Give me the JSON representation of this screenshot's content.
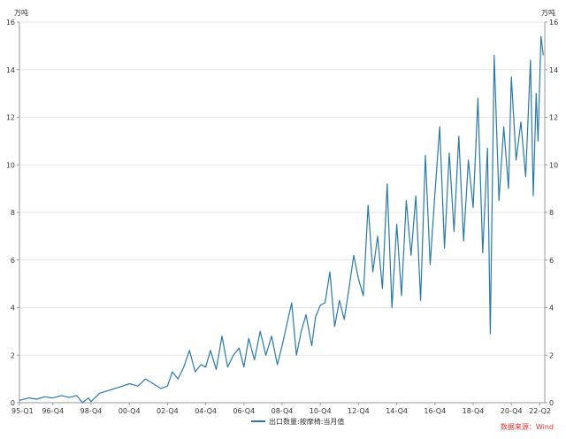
{
  "chart_data": {
    "type": "line",
    "y_unit_left": "万吨",
    "y_unit_right": "万吨",
    "ylim": [
      0,
      16
    ],
    "yticks": [
      0,
      2,
      4,
      6,
      8,
      10,
      12,
      14,
      16
    ],
    "xlim": [
      1995.0,
      2022.5
    ],
    "xticks": [
      {
        "label": "95-Q1",
        "x": 1995.0
      },
      {
        "label": "96-Q4",
        "x": 1996.75
      },
      {
        "label": "98-Q4",
        "x": 1998.75
      },
      {
        "label": "00-Q4",
        "x": 2000.75
      },
      {
        "label": "02-Q4",
        "x": 2002.75
      },
      {
        "label": "04-Q4",
        "x": 2004.75
      },
      {
        "label": "06-Q4",
        "x": 2006.75
      },
      {
        "label": "08-Q4",
        "x": 2008.75
      },
      {
        "label": "10-Q4",
        "x": 2010.75
      },
      {
        "label": "12-Q4",
        "x": 2012.75
      },
      {
        "label": "14-Q4",
        "x": 2014.75
      },
      {
        "label": "16-Q4",
        "x": 2016.75
      },
      {
        "label": "18-Q4",
        "x": 2018.75
      },
      {
        "label": "20-Q4",
        "x": 2020.75
      },
      {
        "label": "22-Q2",
        "x": 2022.25
      }
    ],
    "grid": "horizontal",
    "legend_position": "bottom",
    "source_note": "数据来源：Wind",
    "series": [
      {
        "name": "出口数量:按摩椅:当月值",
        "color": "#2a79a8",
        "points": [
          [
            1995.0,
            0.1
          ],
          [
            1995.5,
            0.2
          ],
          [
            1995.9,
            0.15
          ],
          [
            1996.3,
            0.25
          ],
          [
            1996.75,
            0.2
          ],
          [
            1997.2,
            0.3
          ],
          [
            1997.6,
            0.22
          ],
          [
            1998.0,
            0.3
          ],
          [
            1998.3,
            0.0
          ],
          [
            1998.6,
            0.2
          ],
          [
            1998.75,
            0.05
          ],
          [
            1999.2,
            0.4
          ],
          [
            1999.6,
            0.5
          ],
          [
            2000.0,
            0.6
          ],
          [
            2000.4,
            0.7
          ],
          [
            2000.75,
            0.8
          ],
          [
            2001.2,
            0.7
          ],
          [
            2001.6,
            1.0
          ],
          [
            2002.0,
            0.8
          ],
          [
            2002.4,
            0.6
          ],
          [
            2002.75,
            0.7
          ],
          [
            2003.0,
            1.3
          ],
          [
            2003.3,
            1.0
          ],
          [
            2003.6,
            1.5
          ],
          [
            2003.9,
            2.2
          ],
          [
            2004.2,
            1.3
          ],
          [
            2004.5,
            1.6
          ],
          [
            2004.75,
            1.5
          ],
          [
            2005.0,
            2.2
          ],
          [
            2005.3,
            1.4
          ],
          [
            2005.6,
            2.8
          ],
          [
            2005.9,
            1.5
          ],
          [
            2006.2,
            2.0
          ],
          [
            2006.5,
            2.3
          ],
          [
            2006.75,
            1.5
          ],
          [
            2007.0,
            2.7
          ],
          [
            2007.3,
            1.8
          ],
          [
            2007.6,
            3.0
          ],
          [
            2007.9,
            2.0
          ],
          [
            2008.2,
            2.8
          ],
          [
            2008.5,
            1.6
          ],
          [
            2008.75,
            2.4
          ],
          [
            2009.0,
            3.3
          ],
          [
            2009.25,
            4.2
          ],
          [
            2009.5,
            2.0
          ],
          [
            2009.75,
            3.0
          ],
          [
            2010.0,
            3.7
          ],
          [
            2010.3,
            2.4
          ],
          [
            2010.5,
            3.6
          ],
          [
            2010.75,
            4.1
          ],
          [
            2011.0,
            4.2
          ],
          [
            2011.25,
            5.5
          ],
          [
            2011.5,
            3.2
          ],
          [
            2011.75,
            4.3
          ],
          [
            2012.0,
            3.5
          ],
          [
            2012.25,
            4.8
          ],
          [
            2012.5,
            6.2
          ],
          [
            2012.75,
            5.2
          ],
          [
            2013.0,
            4.5
          ],
          [
            2013.25,
            8.3
          ],
          [
            2013.5,
            5.5
          ],
          [
            2013.75,
            7.0
          ],
          [
            2014.0,
            4.8
          ],
          [
            2014.25,
            9.2
          ],
          [
            2014.5,
            4.0
          ],
          [
            2014.75,
            7.5
          ],
          [
            2015.0,
            4.5
          ],
          [
            2015.25,
            8.5
          ],
          [
            2015.5,
            6.2
          ],
          [
            2015.75,
            8.7
          ],
          [
            2016.0,
            4.3
          ],
          [
            2016.25,
            10.4
          ],
          [
            2016.5,
            5.8
          ],
          [
            2016.75,
            8.8
          ],
          [
            2017.0,
            11.6
          ],
          [
            2017.25,
            6.5
          ],
          [
            2017.5,
            10.5
          ],
          [
            2017.75,
            7.2
          ],
          [
            2018.0,
            11.2
          ],
          [
            2018.25,
            6.8
          ],
          [
            2018.5,
            10.2
          ],
          [
            2018.75,
            8.2
          ],
          [
            2019.0,
            12.8
          ],
          [
            2019.25,
            6.3
          ],
          [
            2019.5,
            10.7
          ],
          [
            2019.65,
            2.9
          ],
          [
            2019.85,
            14.6
          ],
          [
            2020.1,
            8.5
          ],
          [
            2020.35,
            11.6
          ],
          [
            2020.6,
            9.0
          ],
          [
            2020.75,
            13.7
          ],
          [
            2021.0,
            10.2
          ],
          [
            2021.25,
            11.8
          ],
          [
            2021.5,
            9.5
          ],
          [
            2021.75,
            14.4
          ],
          [
            2021.9,
            8.7
          ],
          [
            2022.05,
            13.0
          ],
          [
            2022.15,
            11.0
          ],
          [
            2022.3,
            15.4
          ],
          [
            2022.42,
            14.6
          ]
        ]
      }
    ]
  }
}
